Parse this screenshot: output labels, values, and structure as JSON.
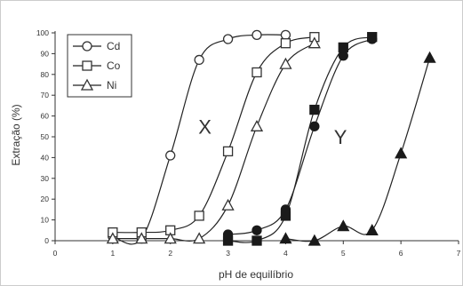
{
  "chart_data": {
    "type": "scatter",
    "xlabel": "pH de equilíbrio",
    "ylabel": "Extração (%)",
    "xlim": [
      0,
      7
    ],
    "ylim": [
      0,
      100
    ],
    "xticks": [
      0,
      1,
      2,
      3,
      4,
      5,
      6,
      7
    ],
    "yticks": [
      0,
      10,
      20,
      30,
      40,
      50,
      60,
      70,
      80,
      90,
      100
    ],
    "grid": false,
    "legend_position": "top-left",
    "legend": [
      {
        "label": "Cd",
        "marker": "circle"
      },
      {
        "label": "Co",
        "marker": "square"
      },
      {
        "label": "Ni",
        "marker": "triangle"
      }
    ],
    "annotations": [
      {
        "text": "X",
        "x": 2.6,
        "y": 55
      },
      {
        "text": "Y",
        "x": 4.95,
        "y": 50
      }
    ],
    "series": [
      {
        "group": "X",
        "marker": "circle",
        "filled": false,
        "x": [
          1.0,
          1.5,
          2.0,
          2.5,
          3.0,
          3.5,
          4.0
        ],
        "y": [
          2,
          1,
          41,
          87,
          97,
          99,
          99
        ]
      },
      {
        "group": "X",
        "marker": "square",
        "filled": false,
        "x": [
          1.0,
          1.5,
          2.0,
          2.5,
          3.0,
          3.5,
          4.0,
          4.5
        ],
        "y": [
          4,
          4,
          5,
          12,
          43,
          81,
          95,
          98
        ]
      },
      {
        "group": "X",
        "marker": "triangle",
        "filled": false,
        "x": [
          1.0,
          1.5,
          2.0,
          2.5,
          3.0,
          3.5,
          4.0,
          4.5
        ],
        "y": [
          1,
          1,
          1,
          1,
          17,
          55,
          85,
          95
        ]
      },
      {
        "group": "Y",
        "marker": "circle",
        "filled": true,
        "x": [
          3.0,
          3.5,
          4.0,
          4.5,
          5.0,
          5.5
        ],
        "y": [
          3,
          5,
          15,
          55,
          89,
          97
        ]
      },
      {
        "group": "Y",
        "marker": "square",
        "filled": true,
        "x": [
          3.0,
          3.5,
          4.0,
          4.5,
          5.0,
          5.5
        ],
        "y": [
          0,
          0,
          12,
          63,
          93,
          98
        ]
      },
      {
        "group": "Y",
        "marker": "triangle",
        "filled": true,
        "x": [
          4.0,
          4.5,
          5.0,
          5.5,
          6.0,
          6.5
        ],
        "y": [
          1,
          0,
          7,
          5,
          42,
          88
        ]
      }
    ]
  }
}
